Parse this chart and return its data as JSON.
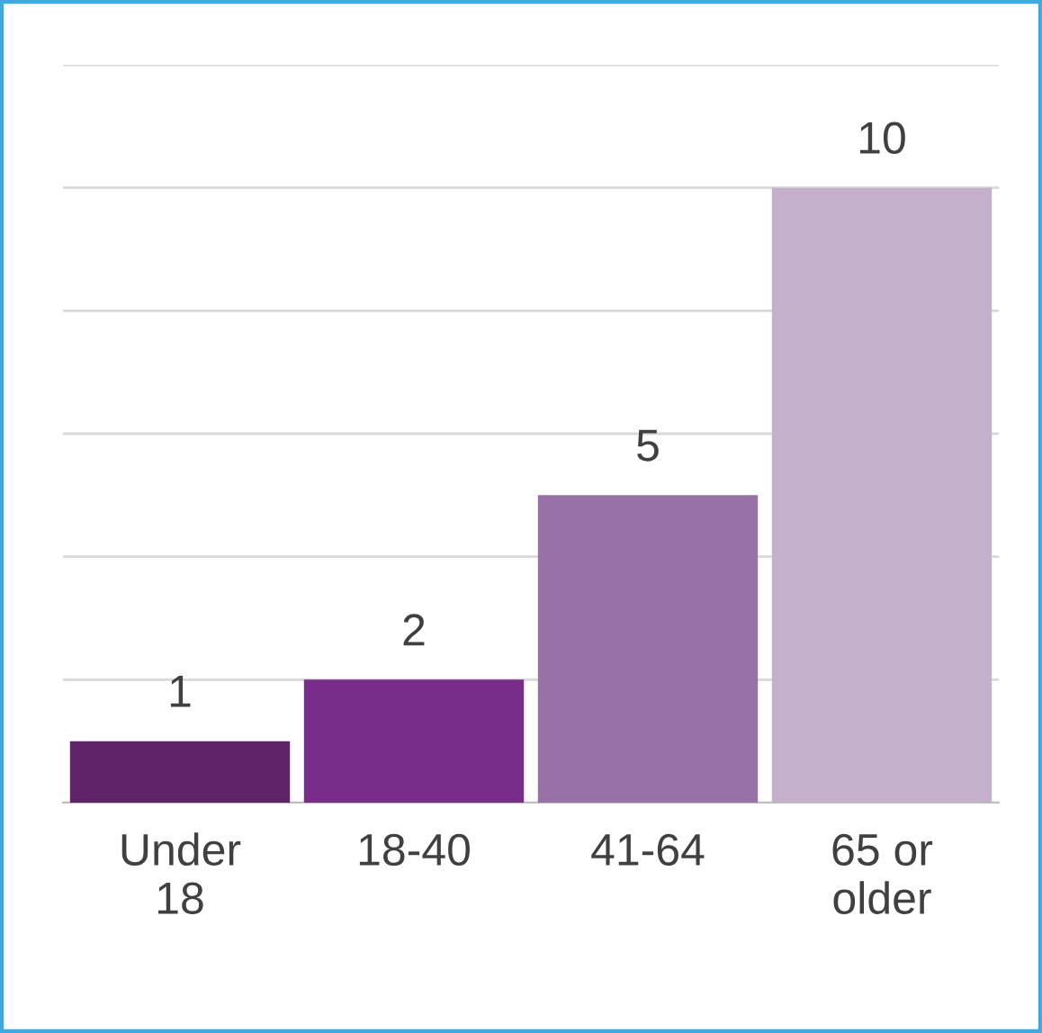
{
  "chart_data": {
    "type": "bar",
    "categories": [
      "Under 18",
      "18-40",
      "41-64",
      "65 or older"
    ],
    "values": [
      1,
      2,
      5,
      10
    ],
    "colors": [
      "#5f2167",
      "#782d8a",
      "#9872a6",
      "#c4b0cb"
    ],
    "ylim": [
      0,
      12
    ],
    "yticks": [
      {
        "value": 0,
        "label": null
      },
      {
        "value": 2,
        "label": null
      },
      {
        "value": 4,
        "label": null
      },
      {
        "value": 6,
        "label": null
      },
      {
        "value": 8,
        "label": null
      },
      {
        "value": 10,
        "label": null
      },
      {
        "value": 12,
        "label": null
      }
    ],
    "grid": "y",
    "tick_labels": "x",
    "data_labels": true
  }
}
